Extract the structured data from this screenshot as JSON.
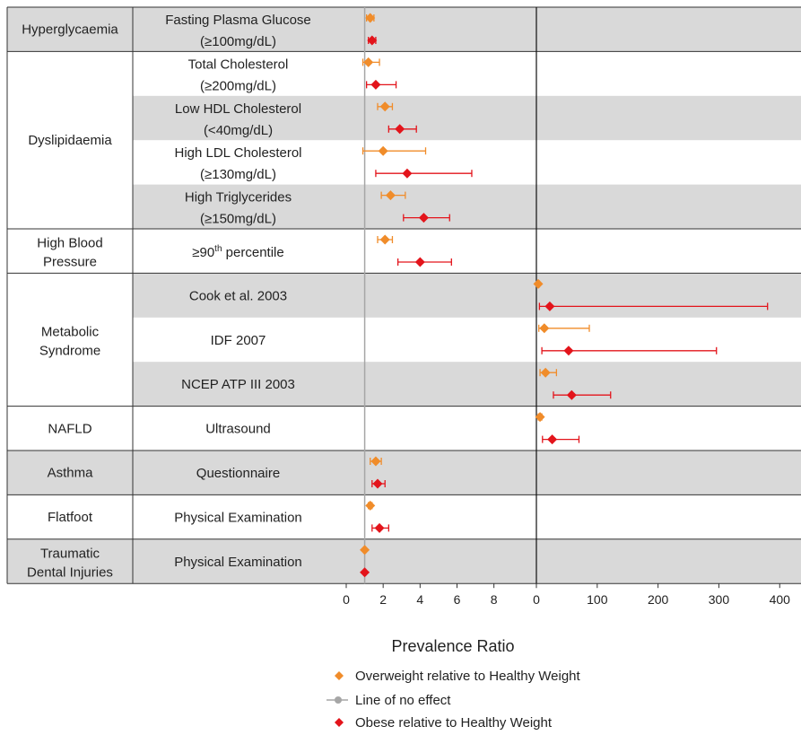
{
  "chart_data": {
    "type": "forest",
    "xlabel": "Prevalence Ratio",
    "panels": [
      {
        "ticks": [
          0,
          2,
          4,
          6,
          8
        ],
        "xlim": [
          0,
          10.3
        ]
      },
      {
        "ticks": [
          0,
          100,
          200,
          300,
          400
        ],
        "xlim": [
          0,
          435
        ]
      }
    ],
    "reference_line": {
      "value": 1,
      "label": "Line of no effect"
    },
    "series": [
      {
        "name": "Overweight relative to Healthy Weight",
        "color": "#f08c2a"
      },
      {
        "name": "Obese relative to Healthy Weight",
        "color": "#e3141b"
      }
    ],
    "groups": [
      {
        "label": "Hyperglycaemia",
        "rows": [
          {
            "label": "Fasting Plasma Glucose",
            "label2": "(≥100mg/dL)",
            "shaded": true,
            "panel": 0,
            "overweight": {
              "est": 1.3,
              "lo": 1.1,
              "hi": 1.5
            },
            "obese": {
              "est": 1.4,
              "lo": 1.2,
              "hi": 1.6
            }
          }
        ]
      },
      {
        "label": "Dyslipidaemia",
        "rows": [
          {
            "label": "Total Cholesterol",
            "label2": "(≥200mg/dL)",
            "shaded": false,
            "panel": 0,
            "overweight": {
              "est": 1.2,
              "lo": 0.9,
              "hi": 1.8
            },
            "obese": {
              "est": 1.6,
              "lo": 1.1,
              "hi": 2.7
            }
          },
          {
            "label": "Low HDL Cholesterol",
            "label2": "(<40mg/dL)",
            "shaded": true,
            "panel": 0,
            "overweight": {
              "est": 2.1,
              "lo": 1.7,
              "hi": 2.5
            },
            "obese": {
              "est": 2.9,
              "lo": 2.3,
              "hi": 3.8
            }
          },
          {
            "label": "High LDL Cholesterol",
            "label2": "(≥130mg/dL)",
            "shaded": false,
            "panel": 0,
            "overweight": {
              "est": 2.0,
              "lo": 0.9,
              "hi": 4.3
            },
            "obese": {
              "est": 3.3,
              "lo": 1.6,
              "hi": 6.8
            }
          },
          {
            "label": "High Triglycerides",
            "label2": "(≥150mg/dL)",
            "shaded": true,
            "panel": 0,
            "overweight": {
              "est": 2.4,
              "lo": 1.9,
              "hi": 3.2
            },
            "obese": {
              "est": 4.2,
              "lo": 3.1,
              "hi": 5.6
            }
          }
        ]
      },
      {
        "label": "High Blood",
        "label2": "Pressure",
        "rows": [
          {
            "label": "≥90",
            "label_sup": "th",
            "label_tail": " percentile",
            "shaded": false,
            "panel": 0,
            "overweight": {
              "est": 2.1,
              "lo": 1.7,
              "hi": 2.5
            },
            "obese": {
              "est": 4.0,
              "lo": 2.8,
              "hi": 5.7
            }
          }
        ]
      },
      {
        "label": "Metabolic",
        "label2": "Syndrome",
        "rows": [
          {
            "label": "Cook et al. 2003",
            "shaded": true,
            "panel": 1,
            "overweight": {
              "est": 3,
              "lo": 1,
              "hi": 5
            },
            "obese": {
              "est": 22,
              "lo": 5,
              "hi": 380
            }
          },
          {
            "label": "IDF 2007",
            "shaded": false,
            "panel": 1,
            "overweight": {
              "est": 13,
              "lo": 4,
              "hi": 87
            },
            "obese": {
              "est": 53,
              "lo": 9,
              "hi": 296
            }
          },
          {
            "label": "NCEP ATP III 2003",
            "shaded": true,
            "panel": 1,
            "overweight": {
              "est": 15,
              "lo": 6,
              "hi": 33
            },
            "obese": {
              "est": 58,
              "lo": 28,
              "hi": 122
            }
          }
        ]
      },
      {
        "label": "NAFLD",
        "rows": [
          {
            "label": "Ultrasound",
            "shaded": false,
            "panel": 1,
            "overweight": {
              "est": 6,
              "lo": 3,
              "hi": 9
            },
            "obese": {
              "est": 26,
              "lo": 10,
              "hi": 70
            }
          }
        ]
      },
      {
        "label": "Asthma",
        "rows": [
          {
            "label": "Questionnaire",
            "shaded": true,
            "panel": 0,
            "overweight": {
              "est": 1.6,
              "lo": 1.3,
              "hi": 1.9
            },
            "obese": {
              "est": 1.7,
              "lo": 1.4,
              "hi": 2.1
            }
          }
        ]
      },
      {
        "label": "Flatfoot",
        "rows": [
          {
            "label": "Physical Examination",
            "shaded": false,
            "panel": 0,
            "overweight": {
              "est": 1.3,
              "lo": 1.2,
              "hi": 1.4
            },
            "obese": {
              "est": 1.8,
              "lo": 1.4,
              "hi": 2.3
            }
          }
        ]
      },
      {
        "label": "Traumatic",
        "label2": "Dental Injuries",
        "rows": [
          {
            "label": "Physical Examination",
            "shaded": true,
            "panel": 0,
            "overweight": {
              "est": 1.0,
              "lo": 0.95,
              "hi": 1.05
            },
            "obese": {
              "est": 1.0,
              "lo": 0.95,
              "hi": 1.05
            }
          }
        ]
      }
    ],
    "legend": {
      "placement": "bottom-center"
    },
    "colors": {
      "overweight": "#f08c2a",
      "obese": "#e3141b",
      "reference": "#a6a6a6",
      "shade": "#d9d9d9"
    }
  }
}
